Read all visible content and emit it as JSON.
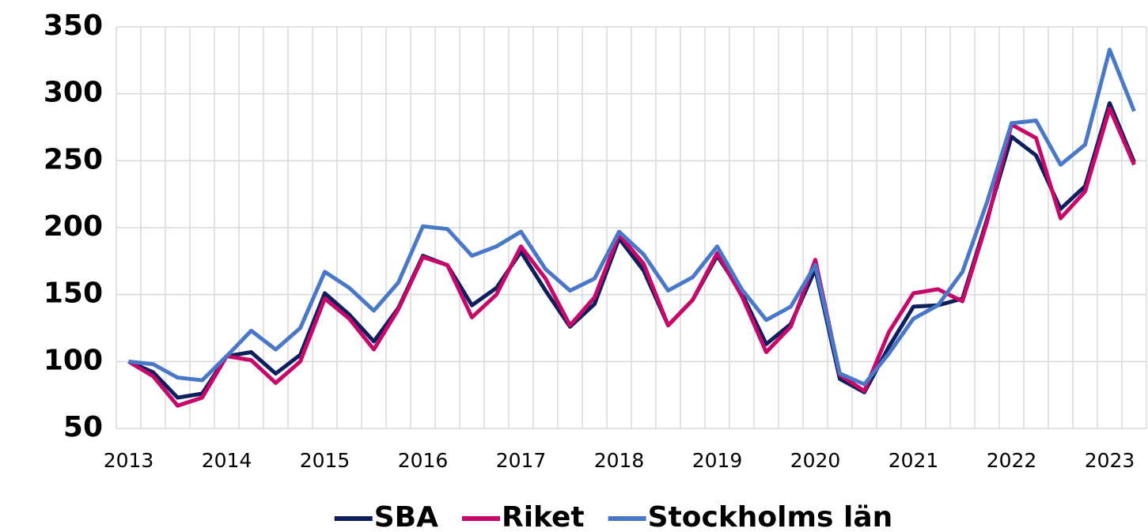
{
  "chart_data": {
    "type": "line",
    "categories": [
      "2013",
      null,
      null,
      null,
      "2014",
      null,
      null,
      null,
      "2015",
      null,
      null,
      null,
      "2016",
      null,
      null,
      null,
      "2017",
      null,
      null,
      null,
      "2018",
      null,
      null,
      null,
      "2019",
      null,
      null,
      null,
      "2020",
      null,
      null,
      null,
      "2021",
      null,
      null,
      null,
      "2022",
      null,
      null,
      null,
      "2023",
      null
    ],
    "series": [
      {
        "name": "SBA",
        "color": "#0d1f5c",
        "values": [
          100,
          92,
          73,
          76,
          104,
          107,
          91,
          105,
          151,
          135,
          115,
          140,
          179,
          172,
          142,
          155,
          182,
          153,
          126,
          143,
          192,
          168,
          127,
          146,
          179,
          151,
          113,
          128,
          169,
          87,
          77,
          111,
          141,
          142,
          147,
          206,
          268,
          254,
          214,
          231,
          293,
          249
        ]
      },
      {
        "name": "Riket",
        "color": "#c8076a",
        "values": [
          100,
          89,
          67,
          73,
          104,
          101,
          84,
          100,
          147,
          132,
          109,
          139,
          178,
          172,
          133,
          150,
          186,
          162,
          127,
          148,
          195,
          173,
          127,
          146,
          181,
          149,
          107,
          126,
          176,
          90,
          78,
          122,
          151,
          154,
          145,
          204,
          277,
          267,
          207,
          227,
          289,
          247
        ]
      },
      {
        "name": "Stockholms län",
        "color": "#4a78c9",
        "values": [
          100,
          98,
          88,
          86,
          104,
          123,
          109,
          125,
          167,
          155,
          138,
          159,
          201,
          199,
          179,
          186,
          197,
          169,
          153,
          162,
          197,
          180,
          153,
          163,
          186,
          154,
          131,
          141,
          172,
          91,
          83,
          106,
          132,
          142,
          167,
          219,
          278,
          280,
          247,
          262,
          333,
          287
        ]
      }
    ],
    "ylim": [
      50,
      350
    ],
    "yticks": [
      50,
      100,
      150,
      200,
      250,
      300,
      350
    ],
    "grid": true,
    "legend": "bottom"
  }
}
